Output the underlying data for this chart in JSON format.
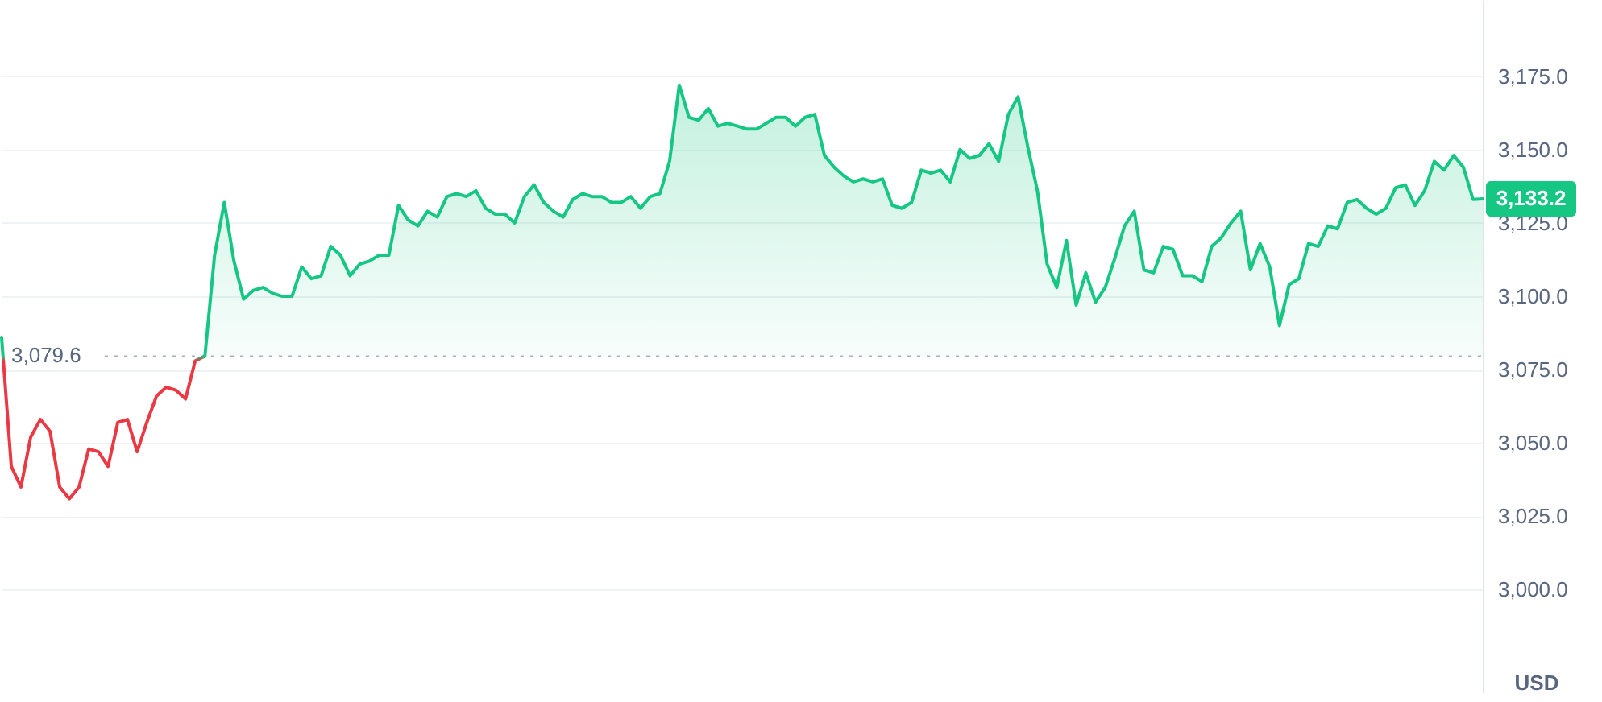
{
  "chart_data": {
    "type": "area",
    "ylabel": "USD",
    "categories": [
      null,
      null,
      null,
      null,
      null,
      null,
      null,
      null,
      null,
      null,
      null,
      null,
      null,
      null,
      null,
      null,
      null,
      null,
      null,
      null,
      null,
      null,
      null,
      null,
      null,
      null,
      null,
      null,
      null,
      null,
      null,
      null,
      null,
      null,
      null,
      null,
      null,
      null,
      null,
      null,
      null,
      null,
      null,
      null,
      null,
      null,
      null,
      null,
      null,
      null,
      null,
      null,
      null,
      null,
      null,
      null,
      null,
      null,
      null,
      null,
      null,
      null,
      null,
      null,
      null,
      null,
      null,
      null,
      null,
      null,
      null,
      null,
      null,
      null,
      null,
      null,
      null,
      null,
      null,
      null,
      null,
      null,
      null,
      null,
      null,
      null,
      null,
      null,
      null,
      null,
      null,
      null,
      null,
      null,
      null,
      null,
      null,
      null,
      null,
      null,
      null,
      null,
      null,
      null,
      null,
      null,
      null,
      null,
      null,
      null,
      null,
      null,
      null,
      null,
      null,
      null,
      null,
      null,
      null,
      null,
      null,
      null,
      null,
      null,
      null,
      null,
      null,
      null,
      null,
      null,
      null,
      null,
      null,
      null,
      null,
      null,
      null,
      null,
      null,
      null,
      null,
      null,
      null,
      null,
      null,
      null,
      null,
      null,
      null,
      null,
      null,
      null,
      null,
      null
    ],
    "series": [
      {
        "values": [
          3086,
          3042,
          3035,
          3052,
          3058,
          3054,
          3035,
          3031,
          3035,
          3048,
          3047,
          3042,
          3057,
          3058,
          3047,
          3057,
          3066,
          3069,
          3068,
          3065,
          3078,
          3079.6,
          3114,
          3132,
          3112,
          3099,
          3102,
          3103,
          3101,
          3100,
          3100,
          3110,
          3106,
          3107,
          3117,
          3114,
          3107,
          3111,
          3112,
          3114,
          3114,
          3131,
          3126,
          3124,
          3129,
          3127,
          3134,
          3135,
          3134,
          3136,
          3130,
          3128,
          3128,
          3125,
          3134,
          3138,
          3132,
          3129,
          3127,
          3133,
          3135,
          3134,
          3134,
          3132,
          3132,
          3134,
          3130,
          3134,
          3135,
          3146,
          3172,
          3161,
          3160,
          3164,
          3158,
          3159,
          3158,
          3157,
          3157,
          3159,
          3161,
          3161,
          3158,
          3161,
          3162,
          3148,
          3144,
          3141,
          3139,
          3140,
          3139,
          3140,
          3131,
          3130,
          3132,
          3143,
          3142,
          3143,
          3139,
          3150,
          3147,
          3148,
          3152,
          3146,
          3162,
          3168,
          3151,
          3136,
          3111,
          3103,
          3119,
          3097,
          3108,
          3098,
          3103,
          3113,
          3124,
          3129,
          3109,
          3108,
          3117,
          3116,
          3107,
          3107,
          3105,
          3117,
          3120,
          3125,
          3129,
          3109,
          3118,
          3110,
          3090,
          3104,
          3106,
          3118,
          3117,
          3124,
          3123,
          3132,
          3133,
          3130,
          3128,
          3130,
          3137,
          3138,
          3131,
          3136,
          3146,
          3143,
          3148,
          3144,
          3133,
          3133.2
        ],
        "colors": [
          "#16c784",
          "#ea3943",
          "#ea3943",
          "#ea3943",
          "#ea3943",
          "#ea3943",
          "#ea3943",
          "#ea3943",
          "#ea3943",
          "#ea3943",
          "#ea3943",
          "#ea3943",
          "#ea3943",
          "#ea3943",
          "#ea3943",
          "#ea3943",
          "#ea3943",
          "#ea3943",
          "#ea3943",
          "#ea3943",
          "#ea3943",
          "#16c784",
          "#16c784",
          "#16c784",
          "#16c784",
          "#16c784",
          "#16c784",
          "#16c784",
          "#16c784",
          "#16c784",
          "#16c784",
          "#16c784",
          "#16c784",
          "#16c784",
          "#16c784",
          "#16c784",
          "#16c784",
          "#16c784",
          "#16c784",
          "#16c784",
          "#16c784",
          "#16c784",
          "#16c784",
          "#16c784",
          "#16c784",
          "#16c784",
          "#16c784",
          "#16c784",
          "#16c784",
          "#16c784",
          "#16c784",
          "#16c784",
          "#16c784",
          "#16c784",
          "#16c784",
          "#16c784",
          "#16c784",
          "#16c784",
          "#16c784",
          "#16c784",
          "#16c784",
          "#16c784",
          "#16c784",
          "#16c784",
          "#16c784",
          "#16c784",
          "#16c784",
          "#16c784",
          "#16c784",
          "#16c784",
          "#16c784",
          "#16c784",
          "#16c784",
          "#16c784",
          "#16c784",
          "#16c784",
          "#16c784",
          "#16c784",
          "#16c784",
          "#16c784",
          "#16c784",
          "#16c784",
          "#16c784",
          "#16c784",
          "#16c784",
          "#16c784",
          "#16c784",
          "#16c784",
          "#16c784",
          "#16c784",
          "#16c784",
          "#16c784",
          "#16c784",
          "#16c784",
          "#16c784",
          "#16c784",
          "#16c784",
          "#16c784",
          "#16c784",
          "#16c784",
          "#16c784",
          "#16c784",
          "#16c784",
          "#16c784",
          "#16c784",
          "#16c784",
          "#16c784",
          "#16c784",
          "#16c784",
          "#16c784",
          "#16c784",
          "#16c784",
          "#16c784",
          "#16c784",
          "#16c784",
          "#16c784",
          "#16c784",
          "#16c784",
          "#16c784",
          "#16c784",
          "#16c784",
          "#16c784",
          "#16c784",
          "#16c784",
          "#16c784",
          "#16c784",
          "#16c784",
          "#16c784",
          "#16c784",
          "#16c784",
          "#16c784",
          "#16c784",
          "#16c784",
          "#16c784",
          "#16c784",
          "#16c784",
          "#16c784",
          "#16c784",
          "#16c784",
          "#16c784",
          "#16c784",
          "#16c784",
          "#16c784",
          "#16c784",
          "#16c784",
          "#16c784",
          "#16c784",
          "#16c784",
          "#16c784",
          "#16c784",
          "#16c784",
          "#16c784",
          "#16c784",
          "#16c784"
        ]
      }
    ],
    "ylim": [
      2965,
      3201
    ],
    "yticks": [
      {
        "value": 3000,
        "label": "3,000.0"
      },
      {
        "value": 3025,
        "label": "3,025.0"
      },
      {
        "value": 3050,
        "label": "3,050.0"
      },
      {
        "value": 3075,
        "label": "3,075.0"
      },
      {
        "value": 3100,
        "label": "3,100.0"
      },
      {
        "value": 3125,
        "label": "3,125.0"
      },
      {
        "value": 3150,
        "label": "3,150.0"
      },
      {
        "value": 3175,
        "label": "3,175.0"
      }
    ],
    "grid": "y",
    "tick_labels": "y",
    "ref_lines": [
      {
        "axis": "y",
        "value": 3079.6,
        "label": "3,079.6",
        "color": "#a6b0c3",
        "line_style": "dotted"
      }
    ],
    "annotations": [
      "3,133.2"
    ]
  }
}
